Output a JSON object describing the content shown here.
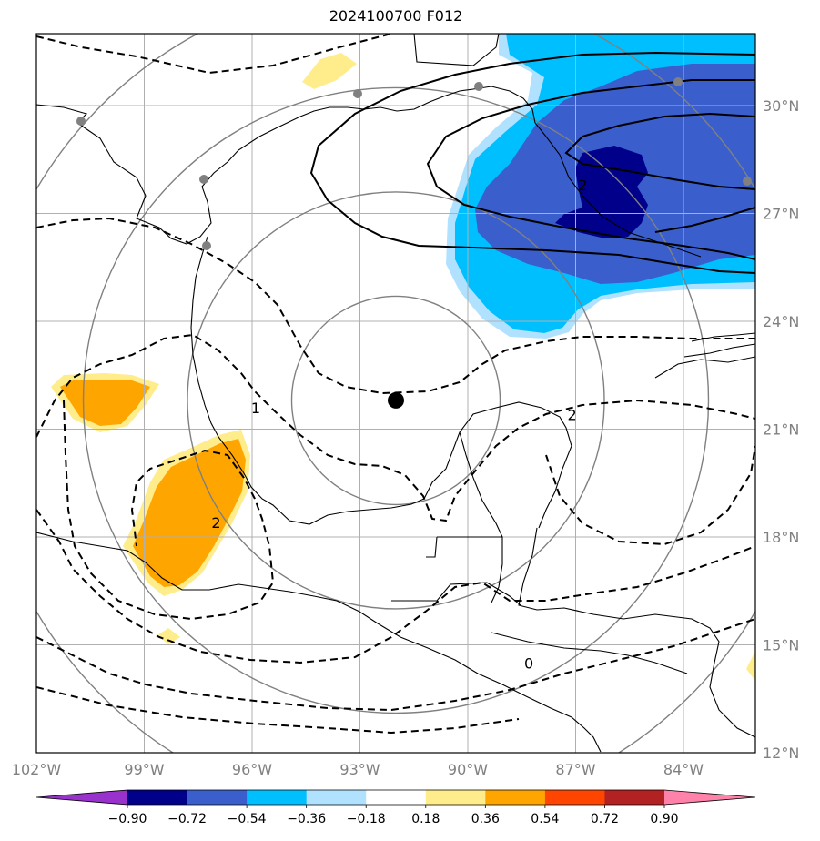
{
  "title": "2024100700 F012",
  "map": {
    "projection": "lat-lon",
    "lon_range": [
      -102,
      -82
    ],
    "lat_range": [
      12,
      32
    ],
    "lon_ticks": [
      {
        "value": -102,
        "label": "102°W"
      },
      {
        "value": -99,
        "label": "99°W"
      },
      {
        "value": -96,
        "label": "96°W"
      },
      {
        "value": -93,
        "label": "93°W"
      },
      {
        "value": -90,
        "label": "90°W"
      },
      {
        "value": -87,
        "label": "87°W"
      },
      {
        "value": -84,
        "label": "84°W"
      }
    ],
    "lat_ticks": [
      {
        "value": 30,
        "label": "30°N"
      },
      {
        "value": 27,
        "label": "27°N"
      },
      {
        "value": 24,
        "label": "24°N"
      },
      {
        "value": 21,
        "label": "21°N"
      },
      {
        "value": 18,
        "label": "18°N"
      },
      {
        "value": 15,
        "label": "15°N"
      },
      {
        "value": 12,
        "label": "12°N"
      }
    ],
    "grid": true,
    "storm_center": {
      "lon": -92.0,
      "lat": 21.8
    },
    "range_rings_center": {
      "lon": -92.0,
      "lat": 21.8
    },
    "range_ring_count": 4,
    "contour_labels": [
      {
        "text": "2",
        "lon": -86.8,
        "lat": 27.8
      },
      {
        "text": "1",
        "lon": -95.9,
        "lat": 21.6
      },
      {
        "text": "2",
        "lon": -87.1,
        "lat": 21.4
      },
      {
        "text": "2",
        "lon": -97.0,
        "lat": 18.4
      },
      {
        "text": "0",
        "lon": -88.3,
        "lat": 14.5
      }
    ],
    "colors": {
      "grid": "#b0b0b0",
      "rings": "#808080",
      "coast": "#000000",
      "storm": "#000000",
      "stations": "#808080"
    }
  },
  "colorbar": {
    "colors": [
      "#9932cc",
      "#00008b",
      "#3a5fcd",
      "#00bfff",
      "#b0e2ff",
      "#ffffff",
      "#ffec8b",
      "#ffa500",
      "#ff4500",
      "#b22222",
      "#ff82ab"
    ],
    "labels": [
      "−0.90",
      "−0.72",
      "−0.54",
      "−0.36",
      "−0.18",
      "0.18",
      "0.36",
      "0.54",
      "0.72",
      "0.90"
    ]
  }
}
